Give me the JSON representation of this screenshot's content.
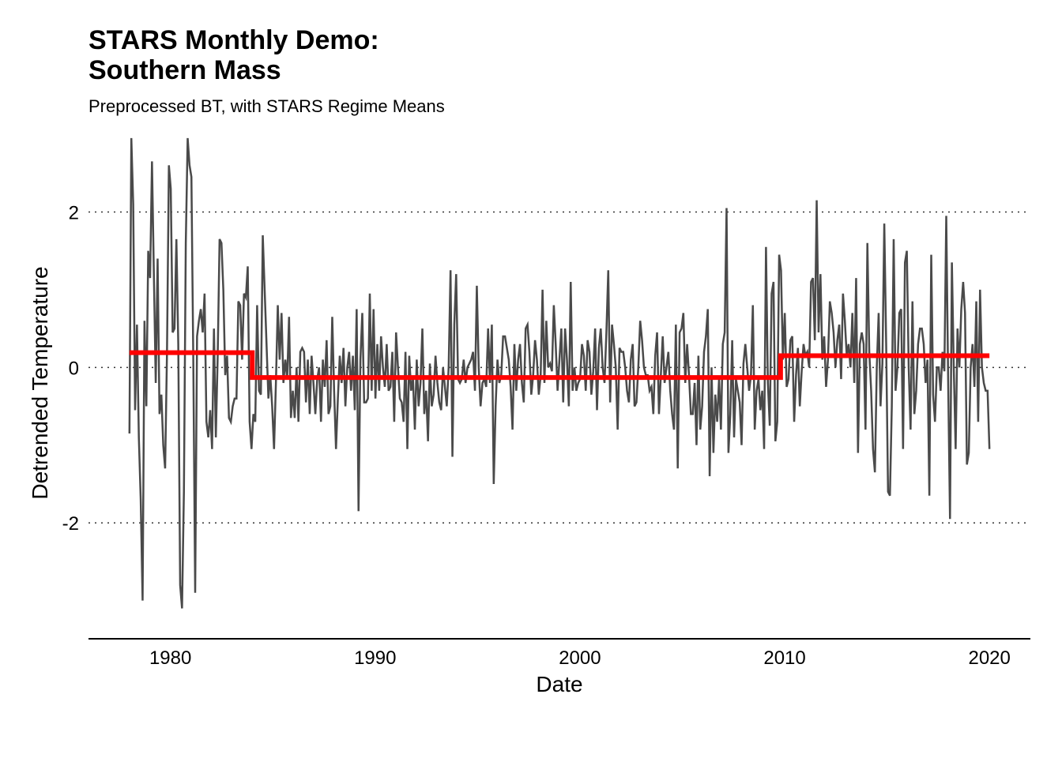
{
  "chart_data": {
    "type": "line",
    "title": "STARS Monthly Demo:\nSouthern Mass",
    "subtitle": "Preprocessed BT, with STARS Regime Means",
    "xlabel": "Date",
    "ylabel": "Detrended Temperature",
    "x_range": [
      1976,
      2022
    ],
    "xlim": [
      1976,
      2022
    ],
    "ylim": [
      -3.4,
      3.0
    ],
    "x_ticks": [
      1980,
      1990,
      2000,
      2010,
      2020
    ],
    "x_tick_labels": [
      "1980",
      "1990",
      "2000",
      "2010",
      "2020"
    ],
    "y_ticks": [
      -2,
      0,
      2
    ],
    "y_tick_labels": [
      "-2",
      "0",
      "2"
    ],
    "grid": "horizontal dotted at y ticks",
    "series": [
      {
        "color": "#4a4a4a",
        "x_start": 1978.0,
        "x_step_months": 1,
        "values": [
          -0.85,
          2.95,
          2.1,
          -0.55,
          0.55,
          -0.9,
          -1.7,
          -3.0,
          0.6,
          -0.5,
          1.5,
          1.15,
          2.65,
          1.2,
          -0.2,
          1.4,
          -0.6,
          -0.35,
          -1.0,
          -1.3,
          0.2,
          2.6,
          2.3,
          0.45,
          0.5,
          1.65,
          0.3,
          -2.8,
          -3.1,
          -1.6,
          1.6,
          2.95,
          2.6,
          2.45,
          0.1,
          -2.9,
          0.4,
          0.6,
          0.75,
          0.45,
          0.95,
          -0.7,
          -0.9,
          -0.55,
          -1.05,
          0.5,
          -0.9,
          0.15,
          1.65,
          1.6,
          1.0,
          -0.1,
          0.15,
          -0.65,
          -0.7,
          -0.5,
          -0.4,
          -0.4,
          0.85,
          0.8,
          0.1,
          0.95,
          0.9,
          1.3,
          -0.7,
          -1.05,
          -0.6,
          -0.7,
          0.8,
          -0.3,
          -0.35,
          1.7,
          1.0,
          0.3,
          -0.4,
          -0.1,
          -0.5,
          -1.05,
          -0.2,
          0.8,
          0.1,
          0.7,
          -0.2,
          0.1,
          -0.15,
          0.65,
          -0.65,
          -0.3,
          -0.65,
          0.0,
          -0.7,
          0.2,
          0.25,
          0.2,
          -0.45,
          0.1,
          -0.6,
          0.15,
          -0.2,
          -0.6,
          -0.15,
          0.0,
          -0.7,
          0.1,
          -0.25,
          0.35,
          -0.6,
          -0.5,
          0.65,
          -0.3,
          -1.05,
          -0.4,
          0.15,
          -0.2,
          0.25,
          -0.5,
          0.0,
          0.2,
          -0.3,
          0.15,
          -0.55,
          0.75,
          -1.85,
          0.1,
          0.7,
          -0.45,
          -0.45,
          -0.4,
          0.95,
          -0.3,
          0.75,
          -0.4,
          0.3,
          -0.3,
          0.4,
          0.0,
          -0.25,
          0.3,
          -0.3,
          -0.25,
          0.2,
          -0.7,
          0.45,
          0.0,
          -0.4,
          -0.45,
          -0.7,
          0.2,
          -1.05,
          0.15,
          -0.3,
          -0.15,
          -0.8,
          0.1,
          -0.5,
          -0.2,
          0.5,
          -0.6,
          -0.3,
          -0.95,
          0.05,
          -0.5,
          -0.35,
          0.15,
          -0.2,
          -0.45,
          -0.55,
          0.0,
          -0.25,
          -0.5,
          0.0,
          1.25,
          -1.15,
          0.55,
          1.2,
          -0.15,
          -0.2,
          -0.15,
          0.1,
          -0.2,
          0.0,
          0.05,
          0.1,
          0.2,
          -0.3,
          1.05,
          0.0,
          -0.5,
          -0.2,
          -0.15,
          -0.25,
          0.5,
          -0.2,
          0.55,
          -1.5,
          -0.5,
          0.1,
          -0.2,
          -0.1,
          0.4,
          0.4,
          0.25,
          0.1,
          -0.25,
          -0.8,
          0.3,
          -0.3,
          0.1,
          0.3,
          -0.2,
          -0.45,
          0.5,
          0.55,
          0.2,
          -0.35,
          -0.1,
          0.35,
          0.1,
          -0.35,
          -0.1,
          1.0,
          -0.2,
          0.6,
          0.0,
          0.05,
          -0.05,
          0.8,
          0.3,
          -0.3,
          0.1,
          0.5,
          -0.45,
          0.5,
          0.1,
          -0.5,
          1.1,
          -0.3,
          0.0,
          -0.3,
          -0.2,
          -0.15,
          0.3,
          0.15,
          -0.3,
          0.35,
          0.2,
          -0.35,
          -0.05,
          0.5,
          -0.55,
          0.25,
          0.5,
          0.0,
          -0.2,
          0.45,
          1.25,
          -0.45,
          0.55,
          0.3,
          0.0,
          -0.8,
          0.25,
          0.2,
          0.2,
          0.0,
          -0.3,
          -0.45,
          0.1,
          0.3,
          -0.5,
          -0.45,
          0.0,
          0.6,
          0.35,
          0.0,
          -0.1,
          -0.1,
          -0.3,
          -0.25,
          -0.6,
          0.15,
          0.45,
          -0.6,
          -0.1,
          0.4,
          -0.2,
          0.0,
          0.2,
          -0.3,
          -0.6,
          -0.8,
          0.55,
          -1.3,
          0.45,
          0.5,
          0.7,
          -0.2,
          0.3,
          -0.1,
          -0.6,
          -0.6,
          -0.2,
          -1.0,
          0.15,
          -0.8,
          -0.5,
          0.2,
          0.4,
          0.75,
          -1.4,
          0.0,
          -1.1,
          -0.35,
          -0.7,
          -0.15,
          -0.8,
          0.3,
          0.45,
          2.05,
          -1.1,
          -0.6,
          0.35,
          -0.9,
          -0.15,
          -0.3,
          -0.45,
          -1.0,
          0.05,
          0.3,
          0.0,
          -0.3,
          -0.1,
          0.8,
          -0.8,
          -0.3,
          -0.15,
          -0.55,
          -0.3,
          -1.05,
          1.55,
          -0.2,
          -0.75,
          0.95,
          1.1,
          -0.95,
          -0.7,
          1.45,
          1.25,
          0.1,
          0.7,
          -0.25,
          -0.15,
          0.35,
          0.4,
          -0.7,
          -0.1,
          0.25,
          -0.5,
          -0.05,
          0.3,
          0.15,
          0.2,
          0.0,
          1.1,
          1.15,
          0.35,
          2.15,
          0.45,
          1.2,
          0.1,
          0.4,
          -0.25,
          0.1,
          0.85,
          0.7,
          0.45,
          0.0,
          0.35,
          0.55,
          -0.15,
          0.95,
          0.6,
          0.15,
          0.3,
          0.0,
          0.7,
          -0.2,
          1.15,
          -1.1,
          0.3,
          0.45,
          0.3,
          -0.8,
          1.6,
          0.2,
          -0.3,
          -1.05,
          -1.35,
          0.0,
          0.7,
          -0.5,
          0.05,
          1.85,
          0.3,
          -1.6,
          -1.65,
          -0.5,
          1.65,
          -0.3,
          0.0,
          0.7,
          0.75,
          -1.05,
          1.35,
          1.5,
          0.0,
          -0.8,
          0.85,
          -0.6,
          -0.3,
          0.3,
          0.5,
          0.5,
          0.3,
          -0.2,
          0.1,
          -1.65,
          1.45,
          -0.35,
          -0.7,
          0.0,
          0.0,
          -0.3,
          0.2,
          -0.05,
          1.95,
          -0.15,
          -1.95,
          1.35,
          0.0,
          -1.05,
          0.5,
          0.0,
          0.75,
          1.1,
          0.7,
          -1.25,
          -1.1,
          0.0,
          0.3,
          -0.25,
          0.85,
          -0.7,
          1.0,
          0.0,
          -0.2,
          -0.3,
          -0.3,
          -1.05
        ]
      },
      {
        "color": "#ff0000",
        "steps": [
          {
            "x0": 1978.0,
            "x1": 1984.0,
            "y": 0.19
          },
          {
            "x0": 1984.0,
            "x1": 2009.8,
            "y": -0.13
          },
          {
            "x0": 2009.8,
            "x1": 2020.0,
            "y": 0.15
          }
        ]
      }
    ]
  }
}
